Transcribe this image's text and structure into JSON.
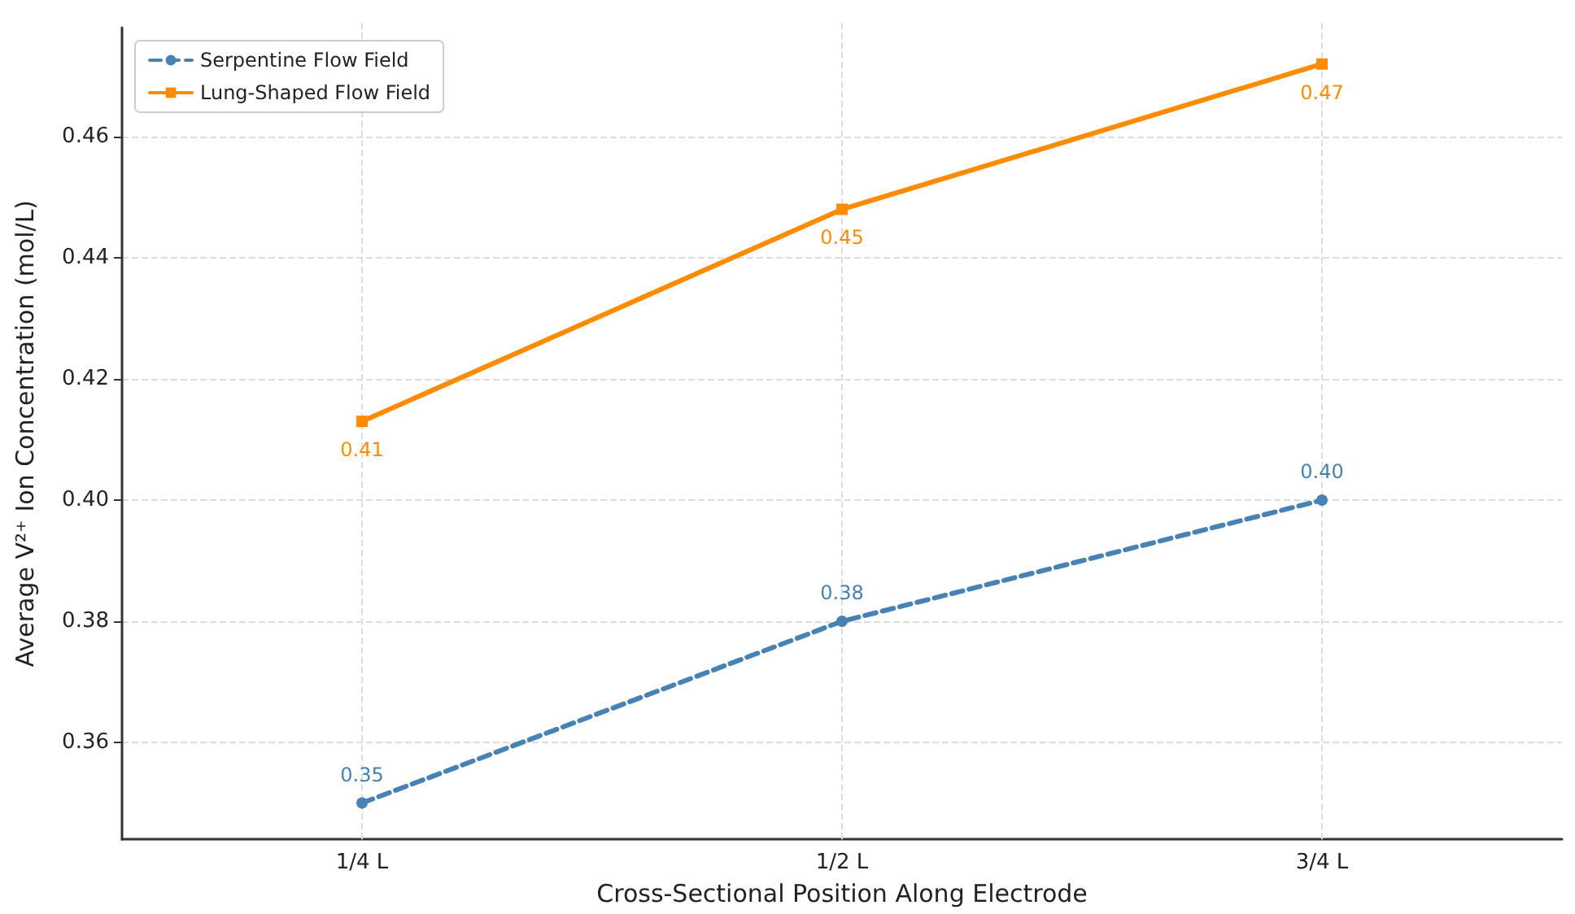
{
  "chart_data": {
    "type": "line",
    "xlabel": "Cross-Sectional Position Along Electrode",
    "ylabel": "Average V²⁺ Ion Concentration (mol/L)",
    "categories": [
      "1/4 L",
      "1/2 L",
      "3/4 L"
    ],
    "series": [
      {
        "name": "Serpentine Flow Field",
        "color": "#4682b4",
        "values": [
          0.35,
          0.38,
          0.4
        ],
        "value_labels": [
          "0.35",
          "0.38",
          "0.40"
        ],
        "marker": "circle",
        "line_style": "dashed"
      },
      {
        "name": "Lung-Shaped Flow Field",
        "color": "#ff8c00",
        "values": [
          0.413,
          0.448,
          0.472
        ],
        "value_labels": [
          "0.41",
          "0.45",
          "0.47"
        ],
        "marker": "square",
        "line_style": "solid"
      }
    ],
    "ylim": [
      0.344,
      0.478
    ],
    "yticks": [
      {
        "value": 0.36,
        "label": "0.36"
      },
      {
        "value": 0.38,
        "label": "0.38"
      },
      {
        "value": 0.4,
        "label": "0.40"
      },
      {
        "value": 0.42,
        "label": "0.42"
      },
      {
        "value": 0.44,
        "label": "0.44"
      },
      {
        "value": 0.46,
        "label": "0.46"
      }
    ],
    "grid": true,
    "legend": "top left"
  }
}
